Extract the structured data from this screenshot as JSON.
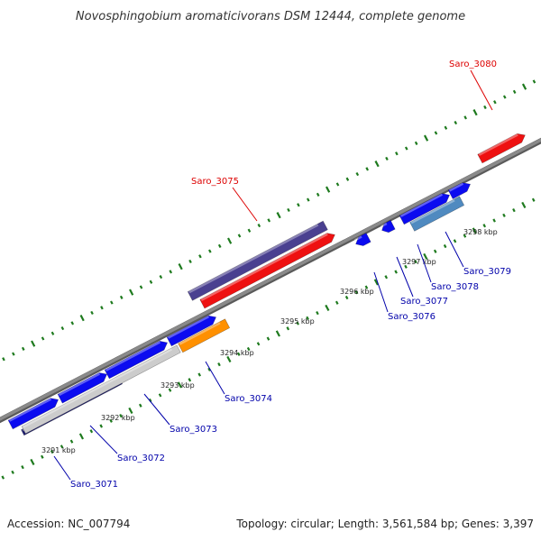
{
  "title": "Novosphingobium aromaticivorans DSM 12444, complete genome",
  "footer": {
    "accession": "Accession: NC_007794",
    "summary": "Topology: circular; Length: 3,561,584 bp; Genes: 3,397"
  },
  "colors": {
    "backbone": "#8a8a8a",
    "backbone_edge": "#5a5a5a",
    "tick": "#1e7a1e",
    "label_forward": "#dd0000",
    "label_reverse": "#0000aa",
    "blue": "#0b0bf0",
    "red": "#ee1111",
    "purple": "#4a4090",
    "lightgray": "#cccccc",
    "orange": "#ff9000",
    "steelblue": "#4f8ac0",
    "navy": "#1c1c70"
  },
  "scale_labels": [
    {
      "kbp": 3291,
      "text": "3291 kbp"
    },
    {
      "kbp": 3292,
      "text": "3292 kbp"
    },
    {
      "kbp": 3293,
      "text": "3293 kbp"
    },
    {
      "kbp": 3294,
      "text": "3294 kbp"
    },
    {
      "kbp": 3295,
      "text": "3295 kbp"
    },
    {
      "kbp": 3296,
      "text": "3296 kbp"
    },
    {
      "kbp": 3297,
      "text": "3297 kbp"
    },
    {
      "kbp": 3298,
      "text": "3298 kbp"
    }
  ],
  "gene_labels": [
    {
      "text": "Saro_3071",
      "strand": "reverse"
    },
    {
      "text": "Saro_3072",
      "strand": "reverse"
    },
    {
      "text": "Saro_3073",
      "strand": "reverse"
    },
    {
      "text": "Saro_3074",
      "strand": "reverse"
    },
    {
      "text": "Saro_3075",
      "strand": "forward"
    },
    {
      "text": "Saro_3076",
      "strand": "reverse"
    },
    {
      "text": "Saro_3077",
      "strand": "reverse"
    },
    {
      "text": "Saro_3078",
      "strand": "reverse"
    },
    {
      "text": "Saro_3079",
      "strand": "reverse"
    },
    {
      "text": "Saro_3080",
      "strand": "forward"
    }
  ]
}
